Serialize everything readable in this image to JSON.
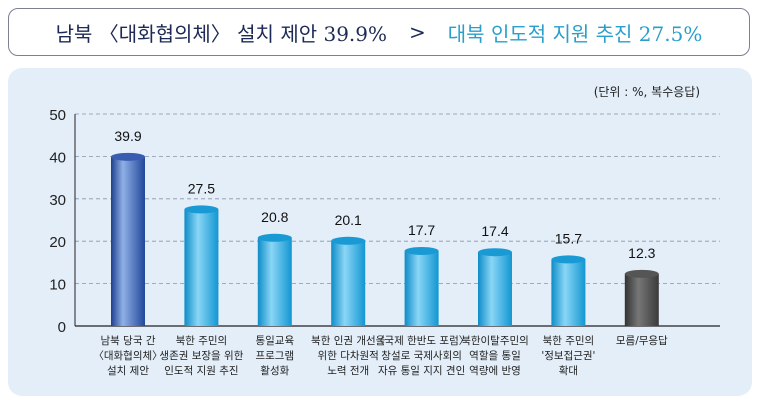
{
  "title": {
    "part1": "남북 〈대화협의체〉 설치 제안 39.9%",
    "separator": ">",
    "part2": "대북 인도적 지원 추진 27.5%"
  },
  "colors": {
    "highlight": "#2c52a6",
    "default": "#1aa2dc",
    "unknown": "#4a4a4a",
    "title_dark": "#1c2a55",
    "title_accent": "#2a9fcc"
  },
  "chart_data": {
    "type": "bar",
    "unit_label": "(단위 : %, 복수응답)",
    "ylim": [
      0,
      50
    ],
    "yticks": [
      "0",
      "10",
      "20",
      "30",
      "40",
      "50"
    ],
    "grid": true,
    "categories": [
      [
        "남북 당국 간",
        "〈대화협의체〉",
        "설치 제안"
      ],
      [
        "북한 주민의",
        "생존권 보장을 위한",
        "인도적 지원 추진"
      ],
      [
        "통일교육",
        "프로그램",
        "활성화"
      ],
      [
        "북한 인권 개선을",
        "위한 다차원적",
        "노력 전개"
      ],
      [
        "〈국제 한반도 포럼〉",
        "창설로 국제사회의",
        "자유 통일 지지 견인"
      ],
      [
        "북한이탈주민의",
        "역할을 통일",
        "역량에 반영"
      ],
      [
        "북한 주민의",
        "'정보접근권'",
        "확대"
      ],
      [
        "모름/무응답"
      ]
    ],
    "values": [
      39.9,
      27.5,
      20.8,
      20.1,
      17.7,
      17.4,
      15.7,
      12.3
    ],
    "value_labels": [
      "39.9",
      "27.5",
      "20.8",
      "20.1",
      "17.7",
      "17.4",
      "15.7",
      "12.3"
    ]
  }
}
